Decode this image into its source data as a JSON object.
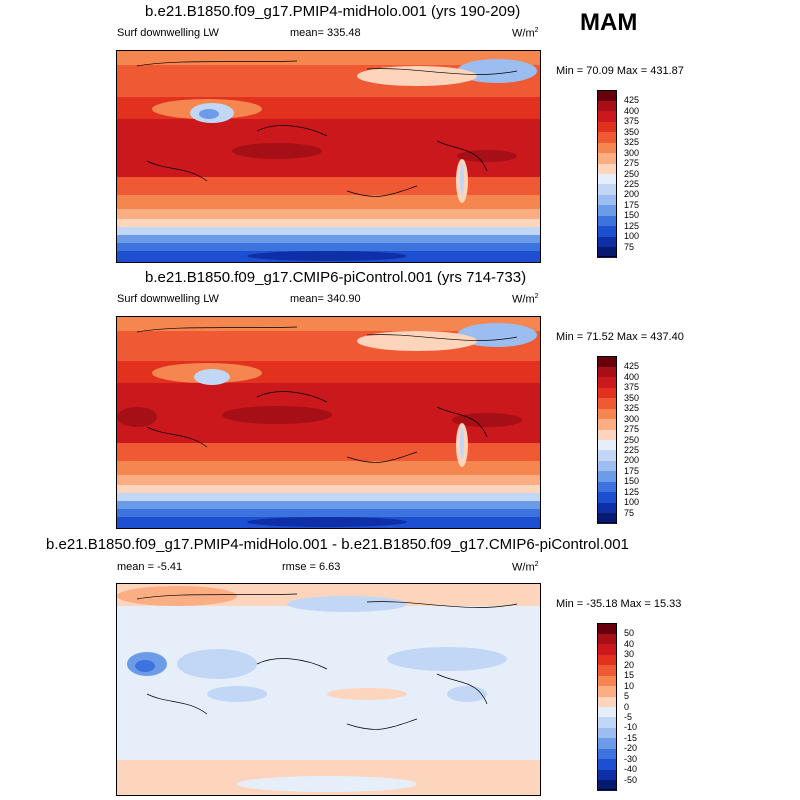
{
  "season": "MAM",
  "chart_data": [
    {
      "type": "heatmap",
      "title": "b.e21.B1850.f09_g17.PMIP4-midHolo.001 (yrs 190-209)",
      "variable": "Surf downwelling LW",
      "units": "W/m",
      "units_exp": "2",
      "mean_label": "mean=",
      "mean": "335.48",
      "min_label": "Min =",
      "min": "70.09",
      "max_label": "Max =",
      "max": "431.87",
      "levels": [
        "425",
        "400",
        "375",
        "350",
        "325",
        "300",
        "275",
        "250",
        "225",
        "200",
        "175",
        "150",
        "125",
        "100",
        "75"
      ],
      "colors": [
        "#67000d",
        "#a50f15",
        "#cb181d",
        "#e2321f",
        "#ef5a34",
        "#f5864f",
        "#fbad84",
        "#fdd5bd",
        "#e6eefa",
        "#c2d6f5",
        "#9cbdf0",
        "#6c9ce8",
        "#3c73df",
        "#1d4fd0",
        "#0e2fa6",
        "#061a70"
      ]
    },
    {
      "type": "heatmap",
      "title": "b.e21.B1850.f09_g17.CMIP6-piControl.001 (yrs 714-733)",
      "variable": "Surf downwelling LW",
      "units": "W/m",
      "units_exp": "2",
      "mean_label": "mean=",
      "mean": "340.90",
      "min_label": "Min =",
      "min": "71.52",
      "max_label": "Max =",
      "max": "437.40",
      "levels": [
        "425",
        "400",
        "375",
        "350",
        "325",
        "300",
        "275",
        "250",
        "225",
        "200",
        "175",
        "150",
        "125",
        "100",
        "75"
      ],
      "colors": [
        "#67000d",
        "#a50f15",
        "#cb181d",
        "#e2321f",
        "#ef5a34",
        "#f5864f",
        "#fbad84",
        "#fdd5bd",
        "#e6eefa",
        "#c2d6f5",
        "#9cbdf0",
        "#6c9ce8",
        "#3c73df",
        "#1d4fd0",
        "#0e2fa6",
        "#061a70"
      ]
    },
    {
      "type": "heatmap",
      "title": "b.e21.B1850.f09_g17.PMIP4-midHolo.001 - b.e21.B1850.f09_g17.CMIP6-piControl.001",
      "units": "W/m",
      "units_exp": "2",
      "mean_label": "mean =",
      "mean": "-5.41",
      "rmse_label": "rmse =",
      "rmse": "6.63",
      "min_label": "Min =",
      "min": "-35.18",
      "max_label": "Max =",
      "max": "15.33",
      "levels": [
        "50",
        "40",
        "30",
        "20",
        "15",
        "10",
        "5",
        "0",
        "-5",
        "-10",
        "-15",
        "-20",
        "-30",
        "-40",
        "-50"
      ],
      "colors": [
        "#67000d",
        "#a50f15",
        "#cb181d",
        "#e2321f",
        "#ef5a34",
        "#f5864f",
        "#fbad84",
        "#fdd5bd",
        "#e6eefa",
        "#c2d6f5",
        "#9cbdf0",
        "#6c9ce8",
        "#3c73df",
        "#1d4fd0",
        "#0e2fa6",
        "#061a70"
      ]
    }
  ]
}
